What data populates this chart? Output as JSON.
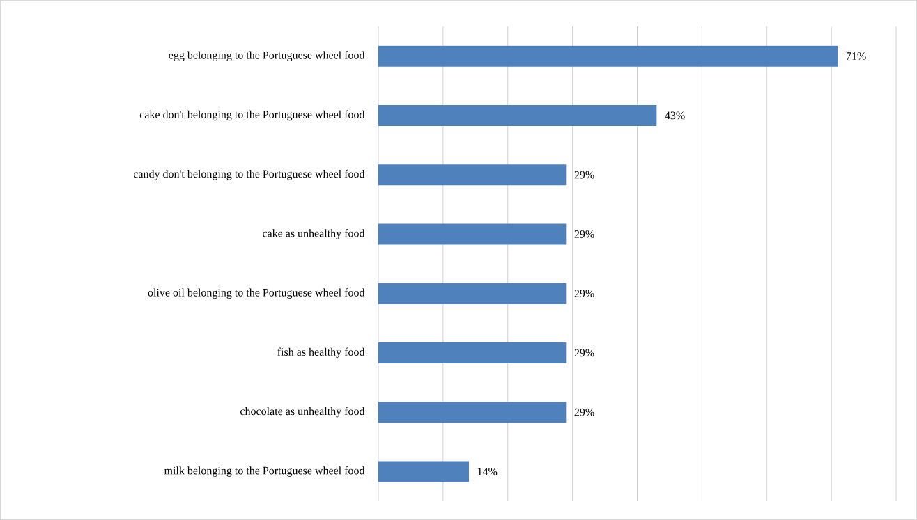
{
  "chart_data": {
    "type": "bar",
    "orientation": "horizontal",
    "categories": [
      "egg belonging to the Portuguese wheel food",
      "cake don't belonging to the Portuguese wheel food",
      "candy don't belonging to the Portuguese wheel food",
      "cake as unhealthy food",
      "olive oil belonging to the Portuguese wheel food",
      "fish as healthy food",
      "chocolate as unhealthy food",
      "milk belonging to the Portuguese wheel food"
    ],
    "values": [
      71,
      43,
      29,
      29,
      29,
      29,
      29,
      14
    ],
    "value_labels": [
      "71%",
      "43%",
      "29%",
      "29%",
      "29%",
      "29%",
      "29%",
      "14%"
    ],
    "color": "#4f81bd",
    "xlim": [
      0,
      80
    ],
    "xticks": [
      {
        "value": 0,
        "label": null
      },
      {
        "value": 10,
        "label": null
      },
      {
        "value": 20,
        "label": null
      },
      {
        "value": 30,
        "label": null
      },
      {
        "value": 40,
        "label": null
      },
      {
        "value": 50,
        "label": null
      },
      {
        "value": 60,
        "label": null
      },
      {
        "value": 70,
        "label": null
      },
      {
        "value": 80,
        "label": null
      }
    ],
    "grid": "x",
    "tick_labels": "y"
  }
}
